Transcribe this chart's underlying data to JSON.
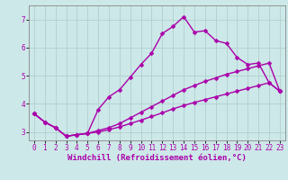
{
  "xlabel": "Windchill (Refroidissement éolien,°C)",
  "bg_color": "#cde8e8",
  "line_color": "#aa00aa",
  "grid_color": "#b0d0d0",
  "xlim": [
    -0.5,
    23.5
  ],
  "ylim": [
    2.7,
    7.5
  ],
  "xticks": [
    0,
    1,
    2,
    3,
    4,
    5,
    6,
    7,
    8,
    9,
    10,
    11,
    12,
    13,
    14,
    15,
    16,
    17,
    18,
    19,
    20,
    21,
    22,
    23
  ],
  "yticks": [
    3,
    4,
    5,
    6,
    7
  ],
  "curve1_x": [
    0,
    1,
    2,
    3,
    4,
    5,
    6,
    7,
    8,
    9,
    10,
    11,
    12,
    13,
    14,
    15,
    16,
    17,
    18,
    19,
    20,
    21,
    22,
    23
  ],
  "curve1_y": [
    3.65,
    3.35,
    3.15,
    2.85,
    2.9,
    2.95,
    3.8,
    4.25,
    4.5,
    4.95,
    5.4,
    5.8,
    6.5,
    6.75,
    7.1,
    6.55,
    6.6,
    6.25,
    6.15,
    5.65,
    5.4,
    5.45,
    4.75,
    4.45
  ],
  "curve2_x": [
    0,
    1,
    2,
    3,
    4,
    5,
    6,
    7,
    8,
    9,
    10,
    11,
    12,
    13,
    14,
    15,
    16,
    17,
    18,
    19,
    20,
    21,
    22,
    23
  ],
  "curve2_y": [
    3.65,
    3.35,
    3.15,
    2.85,
    2.9,
    2.95,
    3.05,
    3.15,
    3.3,
    3.5,
    3.7,
    3.9,
    4.1,
    4.3,
    4.5,
    4.65,
    4.8,
    4.92,
    5.05,
    5.15,
    5.25,
    5.35,
    5.45,
    4.45
  ],
  "curve3_x": [
    0,
    1,
    2,
    3,
    4,
    5,
    6,
    7,
    8,
    9,
    10,
    11,
    12,
    13,
    14,
    15,
    16,
    17,
    18,
    19,
    20,
    21,
    22,
    23
  ],
  "curve3_y": [
    3.65,
    3.35,
    3.15,
    2.85,
    2.9,
    2.95,
    3.0,
    3.08,
    3.18,
    3.3,
    3.42,
    3.55,
    3.68,
    3.82,
    3.94,
    4.05,
    4.15,
    4.25,
    4.35,
    4.45,
    4.55,
    4.65,
    4.75,
    4.45
  ],
  "marker": "D",
  "markersize": 2.5,
  "linewidth": 1.0,
  "xlabel_fontsize": 6.5,
  "tick_fontsize": 5.5
}
